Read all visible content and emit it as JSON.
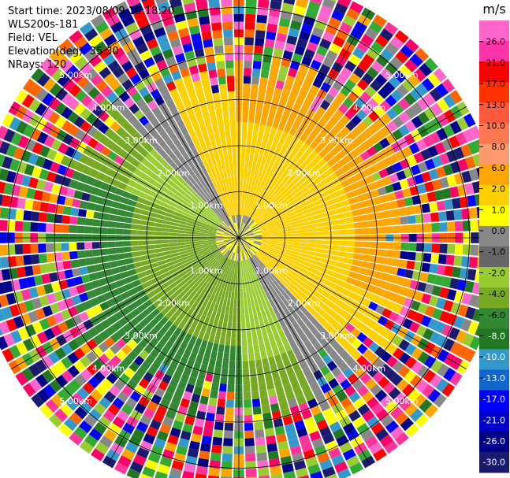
{
  "info": {
    "start_time": "Start time: 2023/08/09 10:18:20",
    "instrument": "WLS200s-181",
    "field": "Field: VEL",
    "elevation": "Elevation(deg): 35.30",
    "nrays": "NRays: 120"
  },
  "chart_data": {
    "type": "heatmap",
    "projection": "polar-ppi",
    "field": "VEL",
    "n_rays": 120,
    "ring_ranges_km": [
      1.0,
      2.0,
      3.0,
      4.0,
      5.0
    ],
    "ring_labels": [
      "1.00km",
      "2.00km",
      "3.00km",
      "4.00km",
      "5.00km"
    ],
    "max_range_km": 5.7,
    "spoke_angles_deg": [
      0,
      30,
      60,
      90,
      120,
      150,
      180,
      210,
      240,
      270,
      300,
      330
    ],
    "colorbar": {
      "unit": "m/s",
      "ticks": [
        "26.0",
        "21.0",
        "17.0",
        "13.0",
        "10.0",
        "8.0",
        "6.0",
        "2.0",
        "1.0",
        "0.0",
        "-1.0",
        "-2.0",
        "-4.0",
        "-6.0",
        "-8.0",
        "-10.0",
        "-13.0",
        "-17.0",
        "-21.0",
        "-26.0",
        "-30.0"
      ],
      "colors": [
        "#ff66cc",
        "#ff33aa",
        "#ff0000",
        "#ff3300",
        "#ff5a3c",
        "#ff7850",
        "#ff9a6e",
        "#ffa500",
        "#ffd000",
        "#ffff00",
        "#888888",
        "#666666",
        "#99cc33",
        "#77aa22",
        "#338833",
        "#227722",
        "#3399cc",
        "#1166cc",
        "#0000ff",
        "#0000cc",
        "#000088",
        "#1a1a6e"
      ]
    }
  }
}
